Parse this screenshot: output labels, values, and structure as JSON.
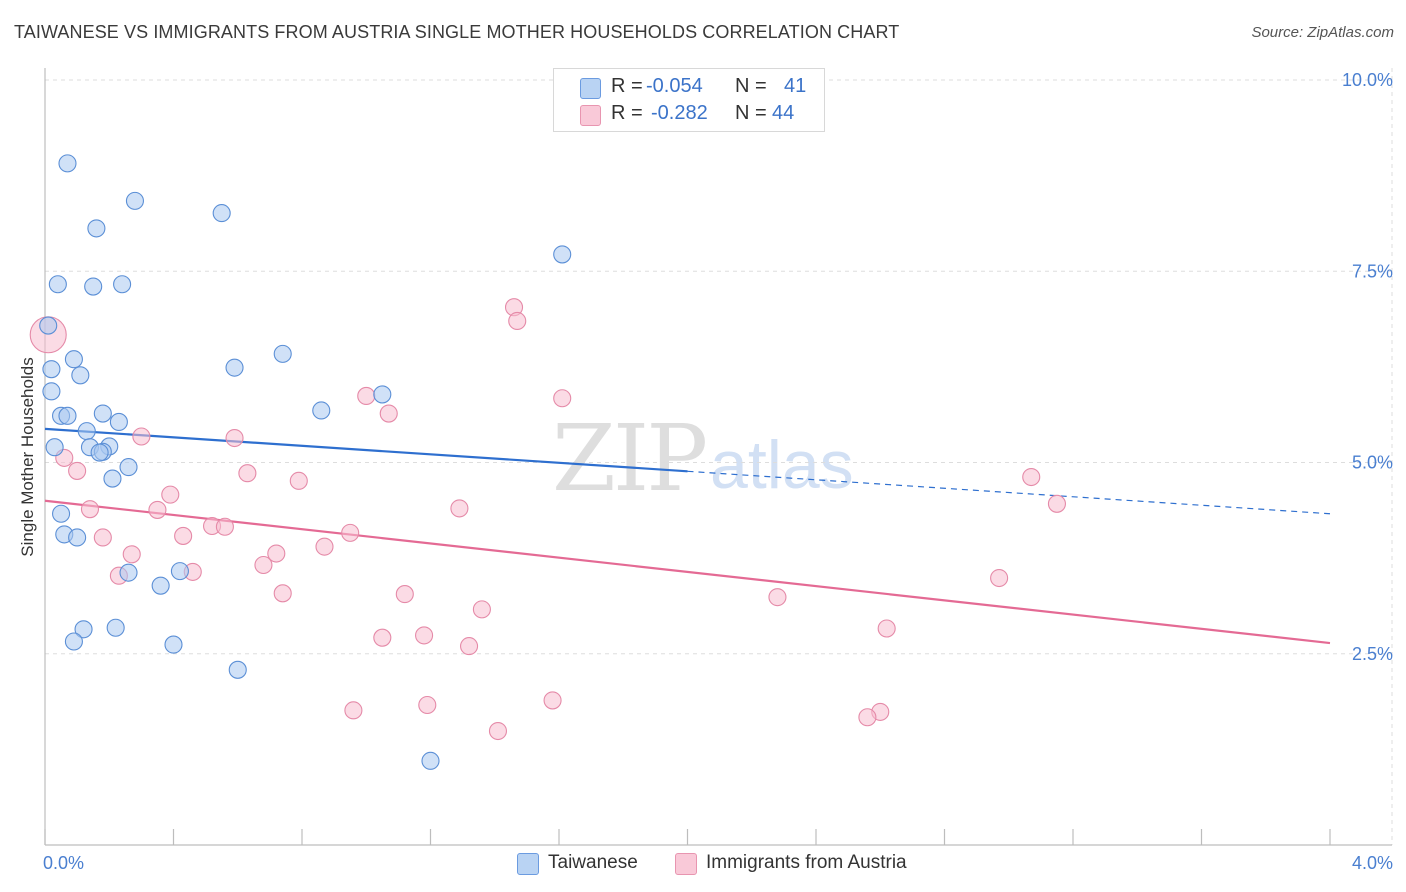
{
  "title": "TAIWANESE VS IMMIGRANTS FROM AUSTRIA SINGLE MOTHER HOUSEHOLDS CORRELATION CHART",
  "source": "Source: ZipAtlas.com",
  "watermark": {
    "zip": "ZIP",
    "atlas": "atlas"
  },
  "legend": {
    "row1": {
      "r_label": "R =",
      "r_value": "-0.054",
      "n_label": "N =",
      "n_value": "41"
    },
    "row2": {
      "r_label": "R =",
      "r_value": "-0.282",
      "n_label": "N =",
      "n_value": "44"
    }
  },
  "bottom_legend": {
    "taiwanese": "Taiwanese",
    "austria": "Immigrants from Austria"
  },
  "colors": {
    "blue_fill": "#a9c8f0",
    "blue_stroke": "#5b8fd6",
    "blue_line": "#2e6fcf",
    "pink_fill": "#f7bdd0",
    "pink_stroke": "#e58aa8",
    "pink_line": "#e46a94",
    "tick_text": "#4a7fd0",
    "grid": "#dddddd"
  },
  "chart_data": {
    "type": "scatter",
    "title": "TAIWANESE VS IMMIGRANTS FROM AUSTRIA SINGLE MOTHER HOUSEHOLDS CORRELATION CHART",
    "xlabel": "",
    "ylabel": "Single Mother Households",
    "xlim": [
      0,
      4.0
    ],
    "ylim": [
      0,
      10.0
    ],
    "x_tick_labels": [
      "0.0%",
      "4.0%"
    ],
    "y_ticks": [
      {
        "value": 2.5,
        "label": "2.5%"
      },
      {
        "value": 5.0,
        "label": "5.0%"
      },
      {
        "value": 7.5,
        "label": "7.5%"
      },
      {
        "value": 10.0,
        "label": "10.0%"
      }
    ],
    "grid": true,
    "legend_position": "top-center",
    "series": [
      {
        "name": "Taiwanese",
        "color": "#5b8fd6",
        "r": -0.054,
        "n": 41,
        "trend": {
          "x0": 0.0,
          "y0": 5.44,
          "x_solid_end": 2.0,
          "x1": 4.0,
          "y1": 4.33
        },
        "points": [
          [
            0.07,
            8.91
          ],
          [
            0.28,
            8.42
          ],
          [
            0.55,
            8.26
          ],
          [
            0.16,
            8.06
          ],
          [
            1.61,
            7.72
          ],
          [
            0.04,
            7.33
          ],
          [
            0.15,
            7.3
          ],
          [
            0.24,
            7.33
          ],
          [
            0.01,
            6.79
          ],
          [
            0.09,
            6.35
          ],
          [
            0.74,
            6.42
          ],
          [
            0.59,
            6.24
          ],
          [
            0.02,
            6.22
          ],
          [
            0.11,
            6.14
          ],
          [
            0.02,
            5.93
          ],
          [
            1.05,
            5.89
          ],
          [
            0.86,
            5.68
          ],
          [
            0.05,
            5.61
          ],
          [
            0.18,
            5.64
          ],
          [
            0.07,
            5.61
          ],
          [
            0.23,
            5.53
          ],
          [
            0.13,
            5.41
          ],
          [
            0.03,
            5.2
          ],
          [
            0.14,
            5.2
          ],
          [
            0.2,
            5.21
          ],
          [
            0.18,
            5.14
          ],
          [
            0.17,
            5.13
          ],
          [
            0.26,
            4.94
          ],
          [
            0.21,
            4.79
          ],
          [
            0.05,
            4.33
          ],
          [
            0.06,
            4.06
          ],
          [
            0.1,
            4.02
          ],
          [
            0.26,
            3.56
          ],
          [
            0.42,
            3.58
          ],
          [
            0.36,
            3.39
          ],
          [
            0.12,
            2.82
          ],
          [
            0.22,
            2.84
          ],
          [
            0.09,
            2.66
          ],
          [
            0.4,
            2.62
          ],
          [
            0.6,
            2.29
          ],
          [
            1.2,
            1.1
          ]
        ]
      },
      {
        "name": "Immigrants from Austria",
        "color": "#e58aa8",
        "r": -0.282,
        "n": 44,
        "trend": {
          "x0": 0.0,
          "y0": 4.5,
          "x1": 4.0,
          "y1": 2.64
        },
        "points": [
          [
            0.01,
            6.67
          ],
          [
            1.46,
            7.03
          ],
          [
            1.47,
            6.85
          ],
          [
            1.0,
            5.87
          ],
          [
            1.61,
            5.84
          ],
          [
            1.07,
            5.64
          ],
          [
            0.3,
            5.34
          ],
          [
            0.59,
            5.32
          ],
          [
            0.06,
            5.06
          ],
          [
            0.1,
            4.89
          ],
          [
            0.63,
            4.86
          ],
          [
            0.79,
            4.76
          ],
          [
            3.07,
            4.81
          ],
          [
            0.39,
            4.58
          ],
          [
            0.14,
            4.39
          ],
          [
            0.35,
            4.38
          ],
          [
            1.29,
            4.4
          ],
          [
            3.15,
            4.46
          ],
          [
            0.52,
            4.17
          ],
          [
            0.56,
            4.16
          ],
          [
            0.95,
            4.08
          ],
          [
            0.43,
            4.04
          ],
          [
            0.18,
            4.02
          ],
          [
            0.87,
            3.9
          ],
          [
            0.27,
            3.8
          ],
          [
            0.72,
            3.81
          ],
          [
            0.68,
            3.66
          ],
          [
            0.46,
            3.57
          ],
          [
            0.23,
            3.52
          ],
          [
            2.97,
            3.49
          ],
          [
            0.74,
            3.29
          ],
          [
            1.12,
            3.28
          ],
          [
            2.28,
            3.24
          ],
          [
            1.36,
            3.08
          ],
          [
            2.62,
            2.83
          ],
          [
            1.05,
            2.71
          ],
          [
            1.18,
            2.74
          ],
          [
            1.32,
            2.6
          ],
          [
            1.58,
            1.89
          ],
          [
            0.96,
            1.76
          ],
          [
            1.19,
            1.83
          ],
          [
            2.6,
            1.74
          ],
          [
            2.56,
            1.67
          ],
          [
            1.41,
            1.49
          ]
        ]
      }
    ]
  }
}
